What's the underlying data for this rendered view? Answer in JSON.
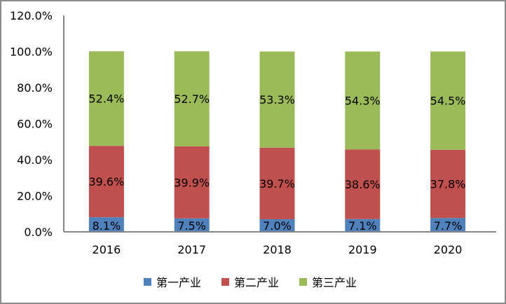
{
  "chart_data": {
    "type": "bar",
    "stacked": true,
    "categories": [
      "2016",
      "2017",
      "2018",
      "2019",
      "2020"
    ],
    "series": [
      {
        "name": "第一产业",
        "color": "#4F81BD",
        "values": [
          8.1,
          7.5,
          7.0,
          7.1,
          7.7
        ],
        "labels": [
          "8.1%",
          "7.5%",
          "7.0%",
          "7.1%",
          "7.7%"
        ]
      },
      {
        "name": "第二产业",
        "color": "#C0504D",
        "values": [
          39.6,
          39.9,
          39.7,
          38.6,
          37.8
        ],
        "labels": [
          "39.6%",
          "39.9%",
          "39.7%",
          "38.6%",
          "37.8%"
        ]
      },
      {
        "name": "第三产业",
        "color": "#9BBB59",
        "values": [
          52.4,
          52.7,
          53.3,
          54.3,
          54.5
        ],
        "labels": [
          "52.4%",
          "52.7%",
          "53.3%",
          "54.3%",
          "54.5%"
        ]
      }
    ],
    "ylim": [
      0,
      120
    ],
    "yticks": [
      "0.0%",
      "20.0%",
      "40.0%",
      "60.0%",
      "80.0%",
      "100.0%",
      "120.0%"
    ],
    "grid": false,
    "legend": "bottom",
    "title": "",
    "xlabel": "",
    "ylabel": ""
  }
}
